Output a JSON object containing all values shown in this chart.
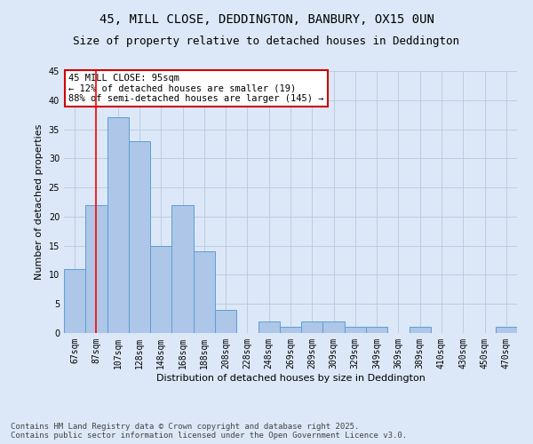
{
  "title_line1": "45, MILL CLOSE, DEDDINGTON, BANBURY, OX15 0UN",
  "title_line2": "Size of property relative to detached houses in Deddington",
  "xlabel": "Distribution of detached houses by size in Deddington",
  "ylabel": "Number of detached properties",
  "bar_labels": [
    "67sqm",
    "87sqm",
    "107sqm",
    "128sqm",
    "148sqm",
    "168sqm",
    "188sqm",
    "208sqm",
    "228sqm",
    "248sqm",
    "269sqm",
    "289sqm",
    "309sqm",
    "329sqm",
    "349sqm",
    "369sqm",
    "389sqm",
    "410sqm",
    "430sqm",
    "450sqm",
    "470sqm"
  ],
  "bar_values": [
    11,
    22,
    37,
    33,
    15,
    22,
    14,
    4,
    0,
    2,
    1,
    2,
    2,
    1,
    1,
    0,
    1,
    0,
    0,
    0,
    1
  ],
  "bar_color": "#aec6e8",
  "bar_edge_color": "#5a9fd4",
  "background_color": "#dce8f7",
  "grid_color": "#b8c8dc",
  "red_line_x": 1.0,
  "annotation_text": "45 MILL CLOSE: 95sqm\n← 12% of detached houses are smaller (19)\n88% of semi-detached houses are larger (145) →",
  "annotation_box_color": "#ffffff",
  "annotation_border_color": "#cc0000",
  "ylim": [
    0,
    45
  ],
  "yticks": [
    0,
    5,
    10,
    15,
    20,
    25,
    30,
    35,
    40,
    45
  ],
  "footer_text": "Contains HM Land Registry data © Crown copyright and database right 2025.\nContains public sector information licensed under the Open Government Licence v3.0.",
  "title_fontsize": 10,
  "subtitle_fontsize": 9,
  "axis_label_fontsize": 8,
  "tick_fontsize": 7,
  "annotation_fontsize": 7.5,
  "footer_fontsize": 6.5
}
